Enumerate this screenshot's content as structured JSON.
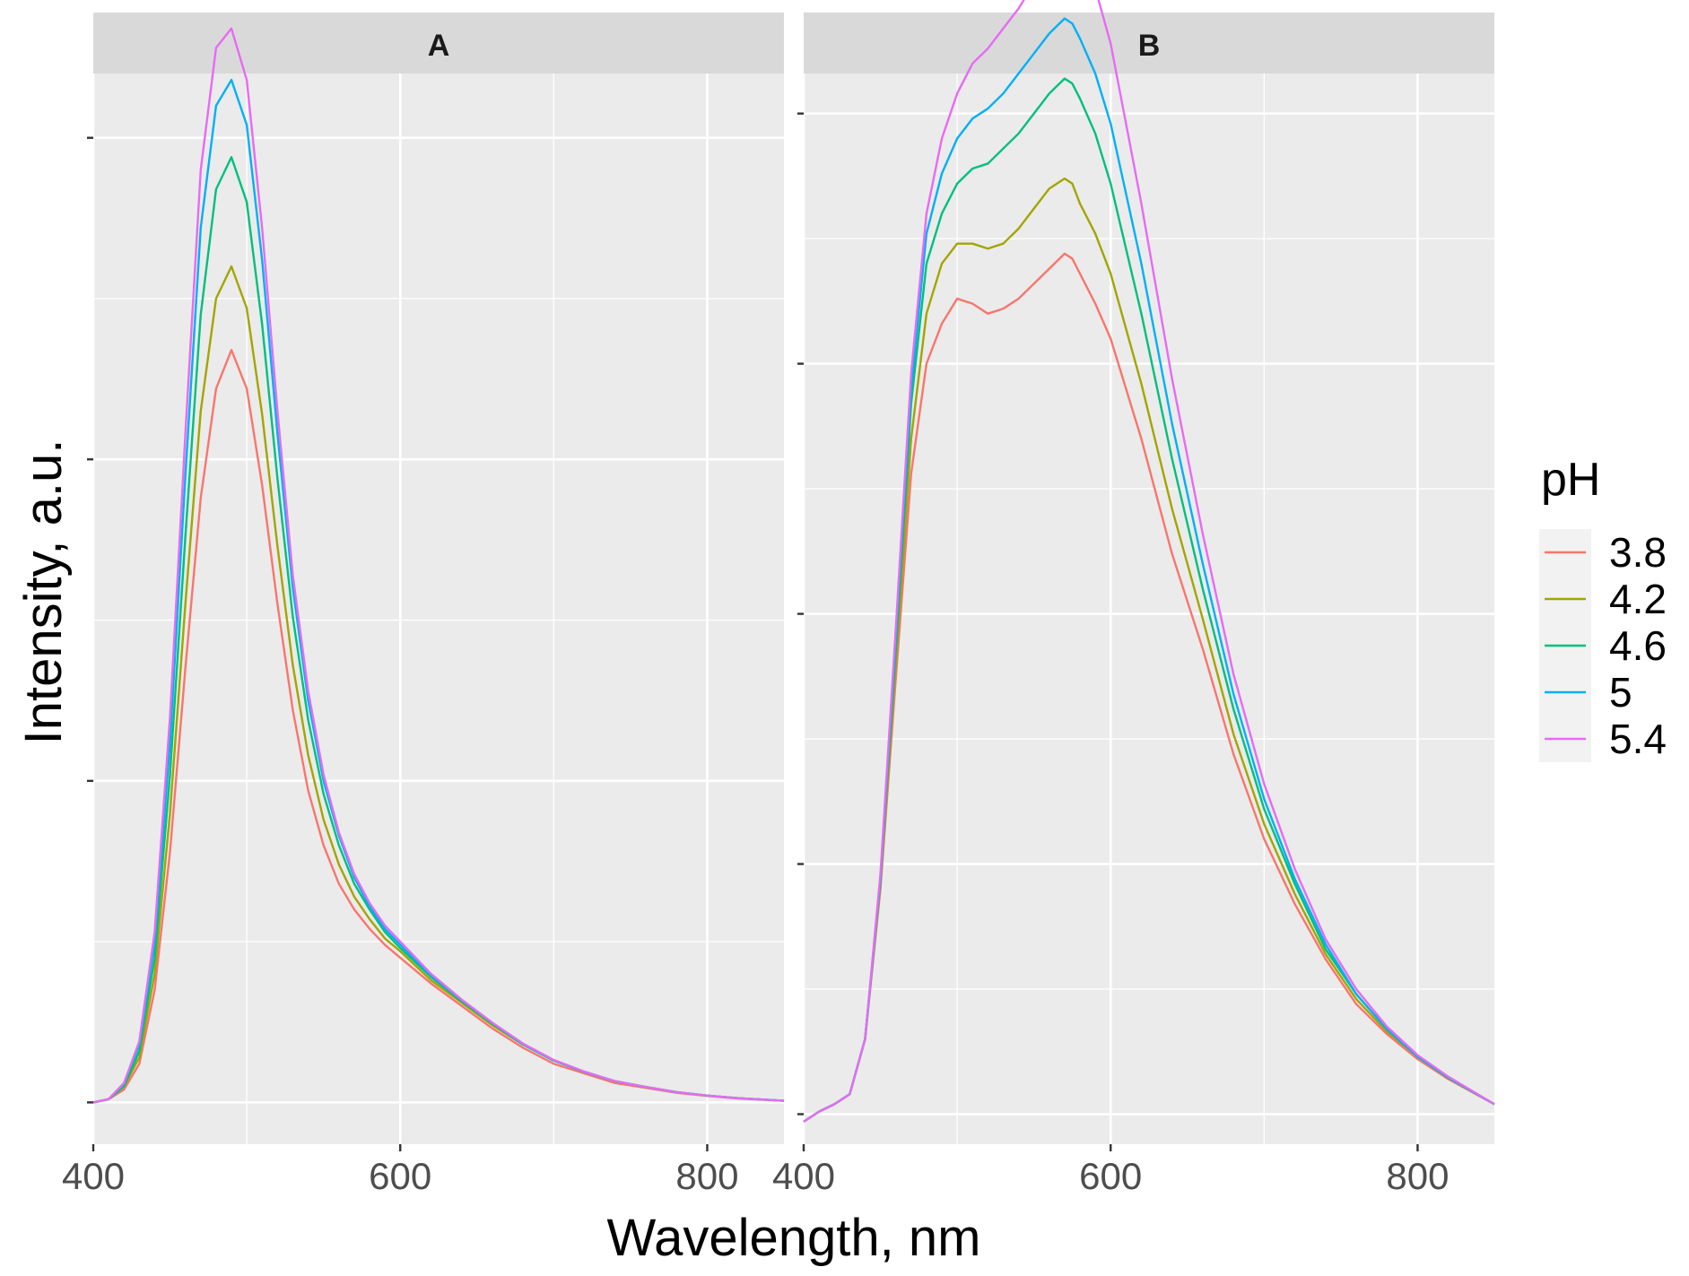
{
  "chart_data": {
    "type": "line",
    "xlabel": "Wavelength, nm",
    "ylabel": "Intensity, a.u.",
    "legend": {
      "title": "pH",
      "position": "right",
      "entries": [
        {
          "label": "3.8",
          "color": "#F8766D"
        },
        {
          "label": "4.2",
          "color": "#A3A500"
        },
        {
          "label": "4.6",
          "color": "#00BF7D"
        },
        {
          "label": "5",
          "color": "#00B0F6"
        },
        {
          "label": "5.4",
          "color": "#E76BF3"
        }
      ]
    },
    "panels": [
      {
        "title": "A",
        "xlim": [
          400,
          850
        ],
        "ylim": [
          -0.13,
          3.2
        ],
        "x_ticks": [
          400,
          600,
          800
        ],
        "x_tick_labels": [
          "400",
          "600",
          "800"
        ],
        "y_ticks": [
          0,
          1,
          2,
          3
        ],
        "series": [
          {
            "name": "3.8",
            "x": [
              400,
              410,
              420,
              430,
              440,
              450,
              460,
              470,
              480,
              490,
              500,
              510,
              520,
              530,
              540,
              550,
              560,
              570,
              580,
              590,
              600,
              620,
              640,
              660,
              680,
              700,
              720,
              740,
              760,
              780,
              800,
              820,
              850
            ],
            "y": [
              0,
              0.01,
              0.04,
              0.12,
              0.35,
              0.78,
              1.35,
              1.88,
              2.22,
              2.34,
              2.22,
              1.92,
              1.55,
              1.22,
              0.97,
              0.8,
              0.68,
              0.6,
              0.54,
              0.49,
              0.45,
              0.37,
              0.3,
              0.23,
              0.17,
              0.12,
              0.09,
              0.06,
              0.045,
              0.03,
              0.02,
              0.012,
              0.005
            ]
          },
          {
            "name": "4.2",
            "x": [
              400,
              410,
              420,
              430,
              440,
              450,
              460,
              470,
              480,
              490,
              500,
              510,
              520,
              530,
              540,
              550,
              560,
              570,
              580,
              590,
              600,
              620,
              640,
              660,
              680,
              700,
              720,
              740,
              760,
              780,
              800,
              820,
              850
            ],
            "y": [
              0,
              0.01,
              0.05,
              0.14,
              0.4,
              0.9,
              1.55,
              2.15,
              2.5,
              2.6,
              2.47,
              2.14,
              1.73,
              1.36,
              1.08,
              0.88,
              0.74,
              0.64,
              0.57,
              0.51,
              0.47,
              0.38,
              0.31,
              0.24,
              0.18,
              0.13,
              0.095,
              0.065,
              0.048,
              0.032,
              0.021,
              0.013,
              0.005
            ]
          },
          {
            "name": "4.6",
            "x": [
              400,
              410,
              420,
              430,
              440,
              450,
              460,
              470,
              480,
              490,
              500,
              510,
              520,
              530,
              540,
              550,
              560,
              570,
              580,
              590,
              600,
              620,
              640,
              660,
              680,
              700,
              720,
              740,
              760,
              780,
              800,
              820,
              850
            ],
            "y": [
              0,
              0.01,
              0.05,
              0.16,
              0.45,
              1.02,
              1.76,
              2.45,
              2.84,
              2.94,
              2.8,
              2.42,
              1.94,
              1.51,
              1.19,
              0.96,
              0.8,
              0.68,
              0.6,
              0.53,
              0.48,
              0.39,
              0.315,
              0.245,
              0.18,
              0.13,
              0.095,
              0.066,
              0.048,
              0.032,
              0.021,
              0.013,
              0.005
            ]
          },
          {
            "name": "5",
            "x": [
              400,
              410,
              420,
              430,
              440,
              450,
              460,
              470,
              480,
              490,
              500,
              510,
              520,
              530,
              540,
              550,
              560,
              570,
              580,
              590,
              600,
              620,
              640,
              660,
              680,
              700,
              720,
              740,
              760,
              780,
              800,
              820,
              850
            ],
            "y": [
              0,
              0.01,
              0.06,
              0.18,
              0.5,
              1.12,
              1.95,
              2.72,
              3.1,
              3.18,
              3.04,
              2.62,
              2.08,
              1.6,
              1.25,
              1.0,
              0.83,
              0.7,
              0.61,
              0.54,
              0.49,
              0.395,
              0.318,
              0.247,
              0.182,
              0.131,
              0.095,
              0.066,
              0.048,
              0.032,
              0.021,
              0.013,
              0.005
            ]
          },
          {
            "name": "5.4",
            "x": [
              400,
              410,
              420,
              430,
              440,
              450,
              460,
              470,
              480,
              490,
              500,
              510,
              520,
              530,
              540,
              550,
              560,
              570,
              580,
              590,
              600,
              620,
              640,
              660,
              680,
              700,
              720,
              740,
              760,
              780,
              800,
              820,
              850
            ],
            "y": [
              0,
              0.01,
              0.06,
              0.19,
              0.53,
              1.2,
              2.08,
              2.9,
              3.28,
              3.34,
              3.18,
              2.72,
              2.15,
              1.64,
              1.28,
              1.02,
              0.84,
              0.71,
              0.62,
              0.55,
              0.5,
              0.4,
              0.32,
              0.248,
              0.183,
              0.132,
              0.096,
              0.066,
              0.048,
              0.032,
              0.021,
              0.013,
              0.005
            ]
          }
        ]
      },
      {
        "title": "B",
        "xlim": [
          400,
          850
        ],
        "ylim": [
          -0.06,
          2.08
        ],
        "x_ticks": [
          400,
          600,
          800
        ],
        "x_tick_labels": [
          "400",
          "600",
          "800"
        ],
        "y_ticks": [
          0,
          0.5,
          1,
          1.5,
          2
        ],
        "series": [
          {
            "name": "3.8",
            "x": [
              400,
              410,
              420,
              430,
              440,
              450,
              460,
              470,
              480,
              490,
              500,
              510,
              520,
              530,
              540,
              550,
              560,
              570,
              575,
              580,
              590,
              600,
              620,
              640,
              660,
              680,
              700,
              720,
              740,
              760,
              780,
              800,
              820,
              850
            ],
            "y": [
              -0.015,
              0.005,
              0.02,
              0.04,
              0.15,
              0.45,
              0.87,
              1.28,
              1.5,
              1.58,
              1.63,
              1.62,
              1.6,
              1.61,
              1.63,
              1.66,
              1.69,
              1.72,
              1.71,
              1.68,
              1.62,
              1.55,
              1.35,
              1.12,
              0.93,
              0.72,
              0.55,
              0.42,
              0.31,
              0.22,
              0.16,
              0.11,
              0.07,
              0.02
            ]
          },
          {
            "name": "4.2",
            "x": [
              400,
              410,
              420,
              430,
              440,
              450,
              460,
              470,
              480,
              490,
              500,
              510,
              520,
              530,
              540,
              550,
              560,
              570,
              575,
              580,
              590,
              600,
              620,
              640,
              660,
              680,
              700,
              720,
              740,
              760,
              780,
              800,
              820,
              850
            ],
            "y": [
              -0.015,
              0.005,
              0.02,
              0.04,
              0.15,
              0.46,
              0.9,
              1.35,
              1.6,
              1.7,
              1.74,
              1.74,
              1.73,
              1.74,
              1.77,
              1.81,
              1.85,
              1.87,
              1.86,
              1.82,
              1.76,
              1.68,
              1.46,
              1.21,
              0.99,
              0.76,
              0.58,
              0.44,
              0.32,
              0.23,
              0.165,
              0.115,
              0.072,
              0.02
            ]
          },
          {
            "name": "4.6",
            "x": [
              400,
              410,
              420,
              430,
              440,
              450,
              460,
              470,
              480,
              490,
              500,
              510,
              520,
              530,
              540,
              550,
              560,
              570,
              575,
              580,
              590,
              600,
              620,
              640,
              660,
              680,
              700,
              720,
              740,
              760,
              780,
              800,
              820,
              850
            ],
            "y": [
              -0.015,
              0.005,
              0.02,
              0.04,
              0.15,
              0.47,
              0.93,
              1.42,
              1.7,
              1.8,
              1.86,
              1.89,
              1.9,
              1.93,
              1.96,
              2.0,
              2.04,
              2.07,
              2.06,
              2.03,
              1.96,
              1.86,
              1.6,
              1.31,
              1.05,
              0.81,
              0.61,
              0.46,
              0.33,
              0.24,
              0.17,
              0.115,
              0.073,
              0.02
            ]
          },
          {
            "name": "5",
            "x": [
              400,
              410,
              420,
              430,
              440,
              450,
              460,
              470,
              480,
              490,
              500,
              510,
              520,
              530,
              540,
              550,
              560,
              570,
              575,
              580,
              590,
              600,
              620,
              640,
              660,
              680,
              700,
              720,
              740,
              760,
              780,
              800,
              820,
              850
            ],
            "y": [
              -0.015,
              0.005,
              0.02,
              0.04,
              0.15,
              0.47,
              0.95,
              1.45,
              1.76,
              1.88,
              1.95,
              1.99,
              2.01,
              2.04,
              2.08,
              2.12,
              2.16,
              2.19,
              2.18,
              2.15,
              2.08,
              1.98,
              1.7,
              1.38,
              1.1,
              0.84,
              0.63,
              0.47,
              0.34,
              0.24,
              0.17,
              0.115,
              0.073,
              0.02
            ]
          },
          {
            "name": "5.4",
            "x": [
              400,
              410,
              420,
              430,
              440,
              450,
              460,
              470,
              480,
              490,
              500,
              510,
              520,
              530,
              540,
              550,
              560,
              570,
              575,
              580,
              590,
              600,
              620,
              640,
              660,
              680,
              700,
              720,
              740,
              760,
              780,
              800,
              820,
              850
            ],
            "y": [
              -0.015,
              0.005,
              0.02,
              0.04,
              0.15,
              0.48,
              0.97,
              1.48,
              1.8,
              1.95,
              2.04,
              2.1,
              2.13,
              2.17,
              2.21,
              2.26,
              2.3,
              2.33,
              2.34,
              2.32,
              2.25,
              2.14,
              1.82,
              1.47,
              1.16,
              0.88,
              0.66,
              0.49,
              0.35,
              0.25,
              0.175,
              0.118,
              0.075,
              0.02
            ]
          }
        ]
      }
    ]
  }
}
